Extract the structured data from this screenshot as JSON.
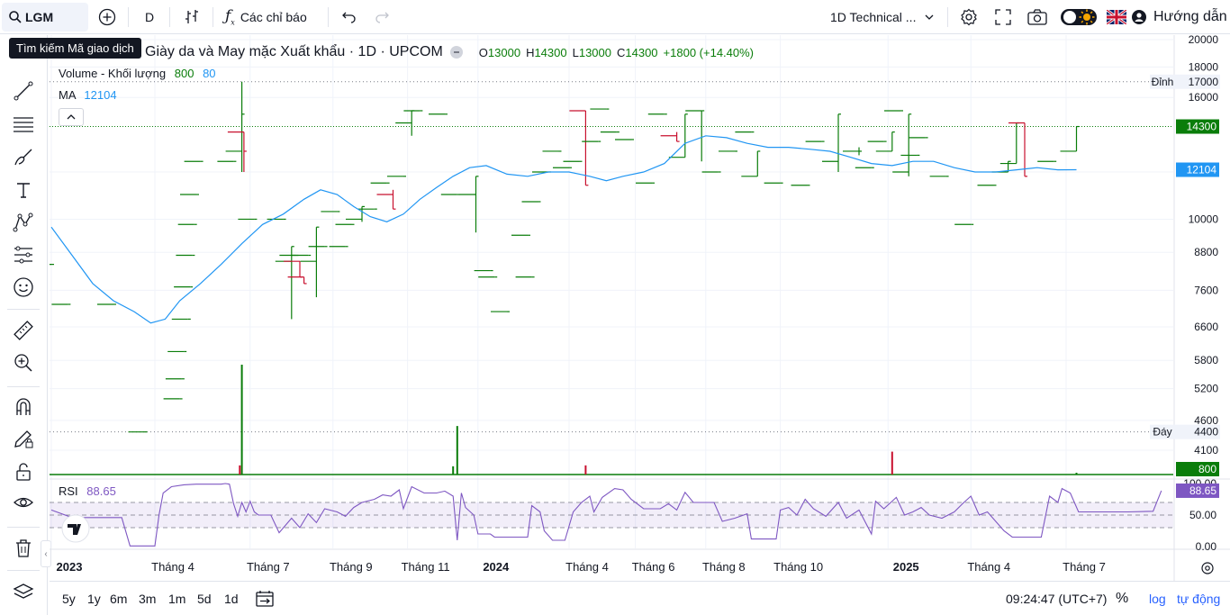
{
  "toolbar": {
    "symbol": "LGM",
    "interval": "D",
    "indicators_label": "Các chỉ báo",
    "layout_name": "1D Technical ...",
    "guide_label": "Hướng dẫn"
  },
  "tooltip": {
    "text": "Tìm kiếm Mã giao dịch"
  },
  "legend": {
    "title": "Giày da và May mặc Xuất khẩu · 1D · UPCOM",
    "o_label": "O",
    "o_value": "13000",
    "h_label": "H",
    "h_value": "14300",
    "l_label": "L",
    "l_value": "13000",
    "c_label": "C",
    "c_value": "14300",
    "change": "+1800 (+14.40%)",
    "volume_label": "Volume - Khối lượng",
    "volume_value": "800",
    "volume_ma": "80",
    "ma_label": "MA",
    "ma_value": "12104",
    "rsi_label": "RSI",
    "rsi_value": "88.65"
  },
  "bottom_bar": {
    "ranges": [
      "5y",
      "1y",
      "6m",
      "3m",
      "1m",
      "5d",
      "1d"
    ],
    "clock": "09:24:47 (UTC+7)",
    "percent": "%",
    "log": "log",
    "auto": "tự động"
  },
  "colors": {
    "up": "#0a7d0a",
    "down": "#c8102e",
    "ma": "#2196f3",
    "rsi": "#7e57c2",
    "accent": "#2962ff"
  },
  "chart_data": {
    "type": "bar",
    "price_axis": {
      "ticks": [
        20000,
        18000,
        16000,
        12000,
        10000,
        8800,
        7600,
        6600,
        5800,
        5200,
        4600,
        4100
      ],
      "scale": "log",
      "ylim": [
        3800,
        20500
      ]
    },
    "x_ticks": [
      "2023",
      "Tháng 4",
      "Tháng 7",
      "Tháng 9",
      "Tháng 11",
      "2024",
      "Tháng 4",
      "Tháng 6",
      "Tháng 8",
      "Tháng 10",
      "2025",
      "Tháng 4",
      "Tháng 7"
    ],
    "markers": {
      "high_label": "Đỉnh",
      "high_value": "17000",
      "low_label": "Đáy",
      "low_value": "4400",
      "last_price": "14300",
      "ma_last": "12104",
      "volume_last": "800"
    },
    "ohlc_bars": [
      {
        "i": 0,
        "o": 8400,
        "h": 8400,
        "l": 8400,
        "c": 8400
      },
      {
        "i": 8,
        "o": 7200,
        "h": 7200,
        "l": 7200,
        "c": 7200
      },
      {
        "i": 30,
        "o": 7200,
        "h": 7200,
        "l": 7200,
        "c": 7200
      },
      {
        "i": 45,
        "o": 4400,
        "h": 4400,
        "l": 4400,
        "c": 4400
      },
      {
        "i": 62,
        "o": 5000,
        "h": 5000,
        "l": 5000,
        "c": 5000
      },
      {
        "i": 63,
        "o": 5400,
        "h": 5400,
        "l": 5400,
        "c": 5400
      },
      {
        "i": 64,
        "o": 6000,
        "h": 6000,
        "l": 6000,
        "c": 6000
      },
      {
        "i": 66,
        "o": 6800,
        "h": 6800,
        "l": 6800,
        "c": 6800
      },
      {
        "i": 67,
        "o": 7700,
        "h": 7700,
        "l": 7700,
        "c": 7700
      },
      {
        "i": 68,
        "o": 8700,
        "h": 8700,
        "l": 8700,
        "c": 8700
      },
      {
        "i": 69,
        "o": 9800,
        "h": 9800,
        "l": 9800,
        "c": 9800
      },
      {
        "i": 70,
        "o": 11000,
        "h": 11000,
        "l": 11000,
        "c": 11000
      },
      {
        "i": 72,
        "o": 12500,
        "h": 12500,
        "l": 12500,
        "c": 12500
      },
      {
        "i": 88,
        "o": 12500,
        "h": 12500,
        "l": 12500,
        "c": 12500
      },
      {
        "i": 92,
        "o": 13000,
        "h": 17000,
        "l": 12000,
        "c": 15000
      },
      {
        "i": 93,
        "o": 14000,
        "h": 14000,
        "l": 12000,
        "c": 13000
      },
      {
        "i": 98,
        "o": 10000,
        "h": 10000,
        "l": 10000,
        "c": 10000
      },
      {
        "i": 112,
        "o": 10000,
        "h": 10000,
        "l": 10000,
        "c": 10000
      },
      {
        "i": 116,
        "o": 8500,
        "h": 9000,
        "l": 6800,
        "c": 9000
      },
      {
        "i": 118,
        "o": 8700,
        "h": 8700,
        "l": 8700,
        "c": 8700
      },
      {
        "i": 120,
        "o": 8500,
        "h": 8500,
        "l": 8000,
        "c": 8000
      },
      {
        "i": 122,
        "o": 8000,
        "h": 8000,
        "l": 7800,
        "c": 7800
      },
      {
        "i": 124,
        "o": 8700,
        "h": 8700,
        "l": 8700,
        "c": 8700
      },
      {
        "i": 128,
        "o": 8500,
        "h": 9700,
        "l": 7400,
        "c": 9700
      },
      {
        "i": 132,
        "o": 9000,
        "h": 9000,
        "l": 9000,
        "c": 9000
      },
      {
        "i": 138,
        "o": 10300,
        "h": 10300,
        "l": 10300,
        "c": 10300
      },
      {
        "i": 142,
        "o": 9000,
        "h": 9000,
        "l": 9000,
        "c": 9000
      },
      {
        "i": 145,
        "o": 9800,
        "h": 9800,
        "l": 9800,
        "c": 9800
      },
      {
        "i": 150,
        "o": 10000,
        "h": 10500,
        "l": 9900,
        "c": 10500
      },
      {
        "i": 156,
        "o": 10400,
        "h": 10400,
        "l": 10400,
        "c": 10400
      },
      {
        "i": 162,
        "o": 11500,
        "h": 11500,
        "l": 11500,
        "c": 11500
      },
      {
        "i": 165,
        "o": 11000,
        "h": 11200,
        "l": 10400,
        "c": 10400
      },
      {
        "i": 170,
        "o": 11800,
        "h": 11800,
        "l": 11800,
        "c": 11800
      },
      {
        "i": 174,
        "o": 14500,
        "h": 15200,
        "l": 13800,
        "c": 15200
      },
      {
        "i": 178,
        "o": 15200,
        "h": 15200,
        "l": 15200,
        "c": 15200
      },
      {
        "i": 190,
        "o": 15000,
        "h": 15000,
        "l": 15000,
        "c": 15000
      },
      {
        "i": 196,
        "o": 11000,
        "h": 11000,
        "l": 11000,
        "c": 11000
      },
      {
        "i": 205,
        "o": 11000,
        "h": 11800,
        "l": 9500,
        "c": 11800
      },
      {
        "i": 212,
        "o": 8200,
        "h": 8200,
        "l": 8200,
        "c": 8200
      },
      {
        "i": 214,
        "o": 8000,
        "h": 8000,
        "l": 8000,
        "c": 8000
      },
      {
        "i": 220,
        "o": 7000,
        "h": 7000,
        "l": 7000,
        "c": 7000
      },
      {
        "i": 230,
        "o": 9400,
        "h": 9400,
        "l": 9400,
        "c": 9400
      },
      {
        "i": 232,
        "o": 8000,
        "h": 8000,
        "l": 8000,
        "c": 8000
      },
      {
        "i": 235,
        "o": 10700,
        "h": 10700,
        "l": 10700,
        "c": 10700
      },
      {
        "i": 240,
        "o": 12000,
        "h": 12000,
        "l": 12000,
        "c": 12000
      },
      {
        "i": 245,
        "o": 13000,
        "h": 13000,
        "l": 13000,
        "c": 13000
      },
      {
        "i": 250,
        "o": 12200,
        "h": 12200,
        "l": 12200,
        "c": 12200
      },
      {
        "i": 255,
        "o": 12500,
        "h": 12500,
        "l": 12500,
        "c": 12500
      },
      {
        "i": 258,
        "o": 15200,
        "h": 15200,
        "l": 11400,
        "c": 11400
      },
      {
        "i": 264,
        "o": 13500,
        "h": 13500,
        "l": 13500,
        "c": 13500
      },
      {
        "i": 268,
        "o": 15300,
        "h": 15300,
        "l": 15300,
        "c": 15300
      },
      {
        "i": 273,
        "o": 14000,
        "h": 14000,
        "l": 14000,
        "c": 14000
      },
      {
        "i": 280,
        "o": 13600,
        "h": 13600,
        "l": 13600,
        "c": 13600
      },
      {
        "i": 290,
        "o": 11500,
        "h": 11500,
        "l": 11500,
        "c": 11500
      },
      {
        "i": 296,
        "o": 15000,
        "h": 15000,
        "l": 15000,
        "c": 15000
      },
      {
        "i": 302,
        "o": 13800,
        "h": 14000,
        "l": 13500,
        "c": 13500
      },
      {
        "i": 306,
        "o": 12700,
        "h": 15000,
        "l": 12700,
        "c": 15000
      },
      {
        "i": 314,
        "o": 15200,
        "h": 15200,
        "l": 12500,
        "c": 15200
      },
      {
        "i": 322,
        "o": 12000,
        "h": 12000,
        "l": 12000,
        "c": 12000
      },
      {
        "i": 330,
        "o": 13000,
        "h": 13000,
        "l": 13000,
        "c": 13000
      },
      {
        "i": 338,
        "o": 14000,
        "h": 14000,
        "l": 14000,
        "c": 14000
      },
      {
        "i": 341,
        "o": 11800,
        "h": 13000,
        "l": 11800,
        "c": 13000
      },
      {
        "i": 352,
        "o": 11500,
        "h": 11500,
        "l": 11500,
        "c": 11500
      },
      {
        "i": 365,
        "o": 11400,
        "h": 11400,
        "l": 11400,
        "c": 11400
      },
      {
        "i": 372,
        "o": 13500,
        "h": 13500,
        "l": 13500,
        "c": 13500
      },
      {
        "i": 380,
        "o": 12500,
        "h": 15000,
        "l": 12000,
        "c": 15000
      },
      {
        "i": 390,
        "o": 13000,
        "h": 13200,
        "l": 12800,
        "c": 13000
      },
      {
        "i": 396,
        "o": 12200,
        "h": 12200,
        "l": 12200,
        "c": 12200
      },
      {
        "i": 402,
        "o": 13500,
        "h": 13500,
        "l": 13500,
        "c": 13500
      },
      {
        "i": 406,
        "o": 13000,
        "h": 14000,
        "l": 13000,
        "c": 14000
      },
      {
        "i": 410,
        "o": 15200,
        "h": 15200,
        "l": 15200,
        "c": 15200
      },
      {
        "i": 414,
        "o": 12000,
        "h": 15000,
        "l": 11800,
        "c": 15000
      },
      {
        "i": 418,
        "o": 12800,
        "h": 12800,
        "l": 12800,
        "c": 12800
      },
      {
        "i": 422,
        "o": 13700,
        "h": 13700,
        "l": 13700,
        "c": 13700
      },
      {
        "i": 432,
        "o": 11800,
        "h": 11800,
        "l": 11800,
        "c": 11800
      },
      {
        "i": 444,
        "o": 9800,
        "h": 9800,
        "l": 9800,
        "c": 9800
      },
      {
        "i": 455,
        "o": 11400,
        "h": 11400,
        "l": 11400,
        "c": 11400
      },
      {
        "i": 462,
        "o": 12000,
        "h": 12500,
        "l": 12000,
        "c": 12500
      },
      {
        "i": 466,
        "o": 12400,
        "h": 14500,
        "l": 12400,
        "c": 14500
      },
      {
        "i": 470,
        "o": 14500,
        "h": 14500,
        "l": 11800,
        "c": 11800
      },
      {
        "i": 484,
        "o": 12500,
        "h": 12500,
        "l": 12500,
        "c": 12500
      },
      {
        "i": 495,
        "o": 13000,
        "h": 14300,
        "l": 13000,
        "c": 14300
      }
    ],
    "volume_spikes": [
      {
        "i": 92,
        "value": 120000,
        "up": true
      },
      {
        "i": 91,
        "value": 10000,
        "up": false
      },
      {
        "i": 196,
        "value": 53000,
        "up": true
      },
      {
        "i": 194,
        "value": 9000,
        "up": true
      },
      {
        "i": 258,
        "value": 10000,
        "up": false
      },
      {
        "i": 406,
        "value": 25000,
        "up": false
      },
      {
        "i": 495,
        "value": 800,
        "up": true
      }
    ],
    "ma_line": [
      [
        0,
        9700
      ],
      [
        10,
        8700
      ],
      [
        20,
        7800
      ],
      [
        30,
        7300
      ],
      [
        40,
        7000
      ],
      [
        48,
        6700
      ],
      [
        55,
        6800
      ],
      [
        62,
        7300
      ],
      [
        72,
        7800
      ],
      [
        82,
        8400
      ],
      [
        92,
        9100
      ],
      [
        102,
        9800
      ],
      [
        112,
        10200
      ],
      [
        122,
        10800
      ],
      [
        130,
        11200
      ],
      [
        138,
        11000
      ],
      [
        146,
        10500
      ],
      [
        154,
        10100
      ],
      [
        162,
        9900
      ],
      [
        170,
        10200
      ],
      [
        178,
        10800
      ],
      [
        186,
        11300
      ],
      [
        194,
        11800
      ],
      [
        202,
        12200
      ],
      [
        210,
        12300
      ],
      [
        220,
        11900
      ],
      [
        230,
        11800
      ],
      [
        240,
        12000
      ],
      [
        250,
        12000
      ],
      [
        260,
        11800
      ],
      [
        268,
        11600
      ],
      [
        276,
        11800
      ],
      [
        286,
        12000
      ],
      [
        296,
        12400
      ],
      [
        306,
        13400
      ],
      [
        316,
        13800
      ],
      [
        326,
        13700
      ],
      [
        336,
        13400
      ],
      [
        346,
        13200
      ],
      [
        356,
        13200
      ],
      [
        366,
        13100
      ],
      [
        376,
        13000
      ],
      [
        386,
        12700
      ],
      [
        396,
        12400
      ],
      [
        406,
        12300
      ],
      [
        416,
        12500
      ],
      [
        426,
        12500
      ],
      [
        436,
        12200
      ],
      [
        446,
        12000
      ],
      [
        456,
        12000
      ],
      [
        466,
        12100
      ],
      [
        476,
        12200
      ],
      [
        486,
        12100
      ],
      [
        495,
        12104
      ]
    ],
    "rsi": {
      "ticks": [
        100,
        50,
        0
      ],
      "tick_labels": [
        "100.00",
        "50.00",
        "0.00"
      ],
      "band": [
        30,
        70
      ],
      "last": 88.65,
      "line": [
        [
          0,
          58
        ],
        [
          10,
          46
        ],
        [
          34,
          46
        ],
        [
          38,
          1
        ],
        [
          50,
          1
        ],
        [
          52,
          50
        ],
        [
          54,
          85
        ],
        [
          58,
          95
        ],
        [
          64,
          98
        ],
        [
          70,
          99
        ],
        [
          82,
          99
        ],
        [
          84,
          100
        ],
        [
          86,
          99
        ],
        [
          88,
          68
        ],
        [
          90,
          48
        ],
        [
          92,
          70
        ],
        [
          94,
          55
        ],
        [
          96,
          72
        ],
        [
          98,
          55
        ],
        [
          100,
          50
        ],
        [
          106,
          50
        ],
        [
          110,
          22
        ],
        [
          116,
          45
        ],
        [
          120,
          30
        ],
        [
          124,
          52
        ],
        [
          128,
          38
        ],
        [
          132,
          60
        ],
        [
          138,
          55
        ],
        [
          142,
          48
        ],
        [
          146,
          62
        ],
        [
          150,
          70
        ],
        [
          156,
          75
        ],
        [
          160,
          82
        ],
        [
          164,
          80
        ],
        [
          168,
          90
        ],
        [
          170,
          60
        ],
        [
          174,
          95
        ],
        [
          180,
          85
        ],
        [
          186,
          85
        ],
        [
          190,
          88
        ],
        [
          194,
          80
        ],
        [
          196,
          10
        ],
        [
          198,
          85
        ],
        [
          200,
          62
        ],
        [
          204,
          50
        ],
        [
          206,
          20
        ],
        [
          212,
          20
        ],
        [
          214,
          15
        ],
        [
          220,
          15
        ],
        [
          230,
          15
        ],
        [
          232,
          65
        ],
        [
          236,
          55
        ],
        [
          238,
          25
        ],
        [
          242,
          10
        ],
        [
          248,
          10
        ],
        [
          252,
          55
        ],
        [
          256,
          70
        ],
        [
          260,
          80
        ],
        [
          262,
          55
        ],
        [
          266,
          78
        ],
        [
          272,
          92
        ],
        [
          276,
          90
        ],
        [
          280,
          75
        ],
        [
          286,
          60
        ],
        [
          294,
          60
        ],
        [
          298,
          68
        ],
        [
          302,
          58
        ],
        [
          306,
          86
        ],
        [
          310,
          70
        ],
        [
          320,
          70
        ],
        [
          324,
          40
        ],
        [
          330,
          45
        ],
        [
          336,
          52
        ],
        [
          338,
          12
        ],
        [
          344,
          12
        ],
        [
          350,
          12
        ],
        [
          352,
          58
        ],
        [
          356,
          62
        ],
        [
          360,
          50
        ],
        [
          364,
          75
        ],
        [
          368,
          60
        ],
        [
          374,
          48
        ],
        [
          380,
          70
        ],
        [
          384,
          45
        ],
        [
          390,
          58
        ],
        [
          396,
          20
        ],
        [
          398,
          72
        ],
        [
          402,
          60
        ],
        [
          408,
          78
        ],
        [
          412,
          50
        ],
        [
          416,
          55
        ],
        [
          420,
          62
        ],
        [
          424,
          50
        ],
        [
          430,
          45
        ],
        [
          436,
          55
        ],
        [
          440,
          68
        ],
        [
          444,
          80
        ],
        [
          448,
          50
        ],
        [
          452,
          55
        ],
        [
          456,
          40
        ],
        [
          460,
          25
        ],
        [
          464,
          15
        ],
        [
          470,
          15
        ],
        [
          478,
          15
        ],
        [
          482,
          80
        ],
        [
          486,
          70
        ],
        [
          488,
          92
        ],
        [
          492,
          85
        ],
        [
          496,
          55
        ],
        [
          510,
          55
        ],
        [
          520,
          55
        ],
        [
          532,
          56
        ],
        [
          536,
          88.65
        ]
      ]
    }
  }
}
